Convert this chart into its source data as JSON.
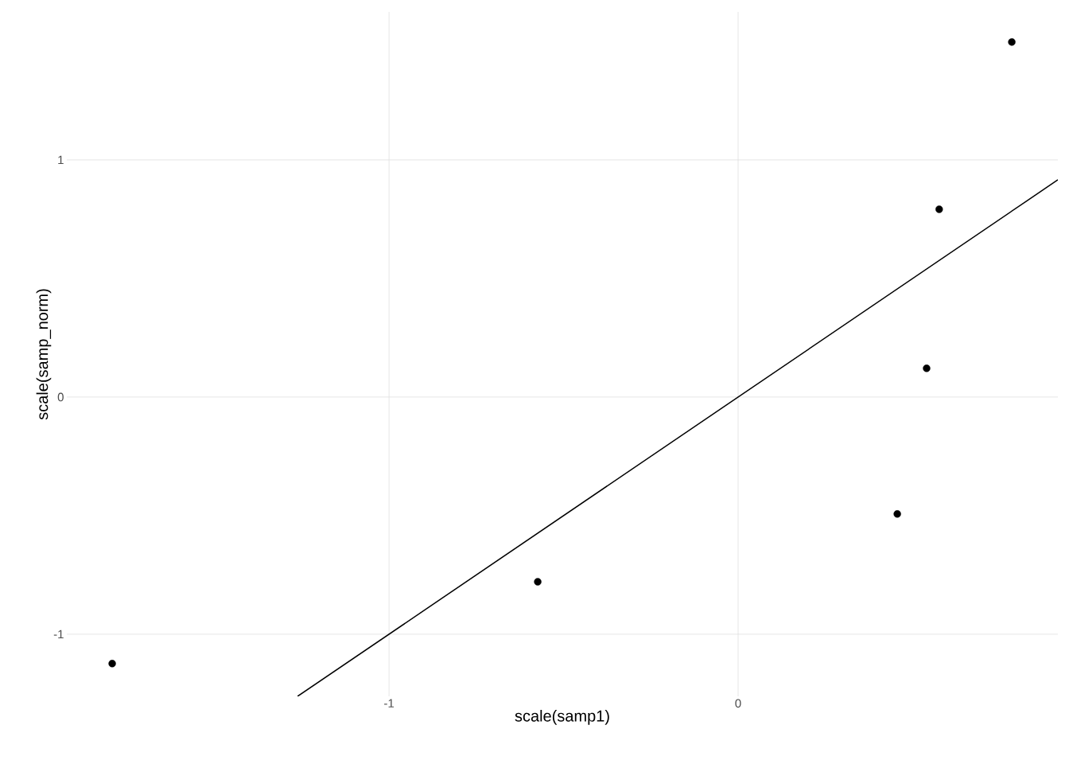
{
  "chart_data": {
    "type": "scatter",
    "xlabel": "scale(samp1)",
    "ylabel": "scale(samp_norm)",
    "xlim": [
      -1.923,
      0.916
    ],
    "ylim": [
      -1.262,
      1.624
    ],
    "xticks": [
      -1,
      0
    ],
    "yticks": [
      -1,
      0,
      1
    ],
    "grid": true,
    "series": [
      {
        "marker": "circle",
        "color": "#000000",
        "x": [
          -1.793,
          -0.574,
          0.456,
          0.54,
          0.576,
          0.784
        ],
        "values": [
          -1.124,
          -0.779,
          -0.493,
          0.121,
          0.792,
          1.497
        ]
      },
      {
        "type": "line",
        "color": "#000000",
        "x": [
          -1.262,
          0.916
        ],
        "values": [
          -1.262,
          0.916
        ],
        "line_style": "solid"
      }
    ]
  }
}
